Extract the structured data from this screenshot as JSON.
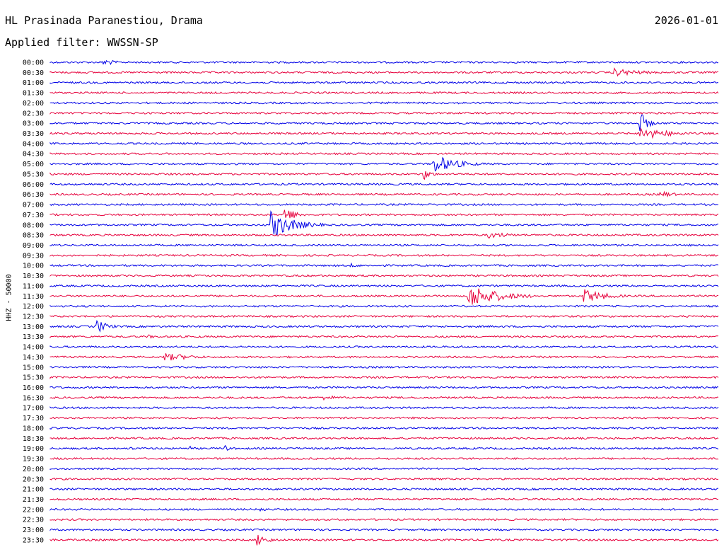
{
  "header": {
    "station": "HL Prasinada Paranestiou, Drama",
    "filter": "Applied filter: WWSSN-SP",
    "date": "2026-01-01",
    "channel": "HHZ - 50000"
  },
  "colors": {
    "blue": "#0000e6",
    "red": "#e6003c"
  },
  "chart_data": {
    "type": "line",
    "title": "HL Prasinada Paranestiou, Drama",
    "subtitle": "Applied filter: WWSSN-SP",
    "ylabel": "HHZ - 50000",
    "row_labels": [
      "00:00",
      "00:30",
      "01:00",
      "01:30",
      "02:00",
      "02:30",
      "03:00",
      "03:30",
      "04:00",
      "04:30",
      "05:00",
      "05:30",
      "06:00",
      "06:30",
      "07:00",
      "07:30",
      "08:00",
      "08:30",
      "09:00",
      "09:30",
      "10:00",
      "10:30",
      "11:00",
      "11:30",
      "12:00",
      "12:30",
      "13:00",
      "13:30",
      "14:00",
      "14:30",
      "15:00",
      "15:30",
      "16:00",
      "16:30",
      "17:00",
      "17:30",
      "18:00",
      "18:30",
      "19:00",
      "19:30",
      "20:00",
      "20:30",
      "21:00",
      "21:30",
      "22:00",
      "22:30",
      "23:00",
      "23:30"
    ],
    "row_minutes": 30,
    "events": [
      {
        "row": 0,
        "minute": 2.4,
        "amplitude": 6,
        "duration_min": 1.5
      },
      {
        "row": 1,
        "minute": 25.3,
        "amplitude": 6,
        "duration_min": 4
      },
      {
        "row": 6,
        "minute": 26.5,
        "amplitude": 16,
        "duration_min": 1
      },
      {
        "row": 7,
        "minute": 26.5,
        "amplitude": 9,
        "duration_min": 4
      },
      {
        "row": 10,
        "minute": 17.2,
        "amplitude": 14,
        "duration_min": 3
      },
      {
        "row": 11,
        "minute": 16.8,
        "amplitude": 8,
        "duration_min": 1
      },
      {
        "row": 13,
        "minute": 27.4,
        "amplitude": 5,
        "duration_min": 2
      },
      {
        "row": 15,
        "minute": 10.5,
        "amplitude": 12,
        "duration_min": 1.5
      },
      {
        "row": 16,
        "minute": 9.9,
        "amplitude": 20,
        "duration_min": 3
      },
      {
        "row": 17,
        "minute": 19.7,
        "amplitude": 5,
        "duration_min": 3
      },
      {
        "row": 20,
        "minute": 13.5,
        "amplitude": 3,
        "duration_min": 2
      },
      {
        "row": 23,
        "minute": 18.8,
        "amplitude": 17,
        "duration_min": 4
      },
      {
        "row": 23,
        "minute": 24.0,
        "amplitude": 10,
        "duration_min": 3
      },
      {
        "row": 26,
        "minute": 2.1,
        "amplitude": 10,
        "duration_min": 1.5
      },
      {
        "row": 27,
        "minute": 4.4,
        "amplitude": 3,
        "duration_min": 1.5
      },
      {
        "row": 28,
        "minute": 18.4,
        "amplitude": 3,
        "duration_min": 1
      },
      {
        "row": 29,
        "minute": 5.1,
        "amplitude": 6,
        "duration_min": 4
      },
      {
        "row": 31,
        "minute": 23.8,
        "amplitude": 2,
        "duration_min": 1
      },
      {
        "row": 33,
        "minute": 12.3,
        "amplitude": 4,
        "duration_min": 2
      },
      {
        "row": 38,
        "minute": 3.6,
        "amplitude": 3,
        "duration_min": 0.5
      },
      {
        "row": 38,
        "minute": 6.3,
        "amplitude": 3,
        "duration_min": 0.3
      },
      {
        "row": 38,
        "minute": 7.9,
        "amplitude": 5,
        "duration_min": 0.4
      },
      {
        "row": 41,
        "minute": 27.0,
        "amplitude": 2,
        "duration_min": 1
      },
      {
        "row": 44,
        "minute": 9.4,
        "amplitude": 4,
        "duration_min": 1
      },
      {
        "row": 47,
        "minute": 9.3,
        "amplitude": 9,
        "duration_min": 1.5
      },
      {
        "row": 47,
        "minute": 22.9,
        "amplitude": 2,
        "duration_min": 0.5
      }
    ]
  }
}
